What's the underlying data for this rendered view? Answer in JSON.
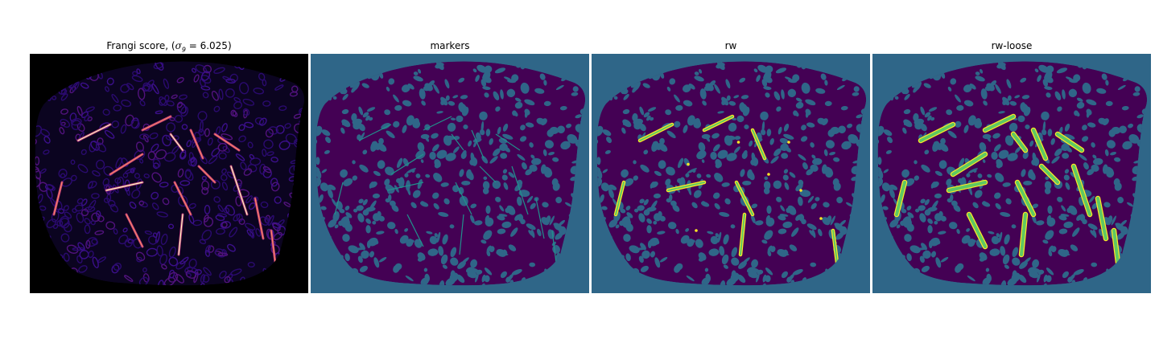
{
  "figure": {
    "panels": [
      {
        "id": "frangi",
        "title_prefix": "Frangi score, (",
        "title_symbol": "σ",
        "title_subscript": "9",
        "title_suffix": " = 6.025)",
        "image": "frangi-vesselness-map",
        "colormap": "magma",
        "background_color": "#000000"
      },
      {
        "id": "markers",
        "title": "markers",
        "image": "marker-label-map",
        "colormap": "viridis",
        "background_color": "#2f6688",
        "foreground_color": "#440154",
        "marker_color": "#21918c"
      },
      {
        "id": "rw",
        "title": "rw",
        "image": "random-walker-segmentation",
        "colormap": "viridis",
        "background_color": "#2f6688",
        "foreground_color": "#440154",
        "vessel_color": "#fde725",
        "vessel_fill_color": "#5ec962"
      },
      {
        "id": "rw-loose",
        "title": "rw-loose",
        "image": "random-walker-loose-segmentation",
        "colormap": "viridis",
        "background_color": "#2f6688",
        "foreground_color": "#440154",
        "vessel_color": "#fde725",
        "vessel_fill_color": "#5ec962"
      }
    ]
  }
}
